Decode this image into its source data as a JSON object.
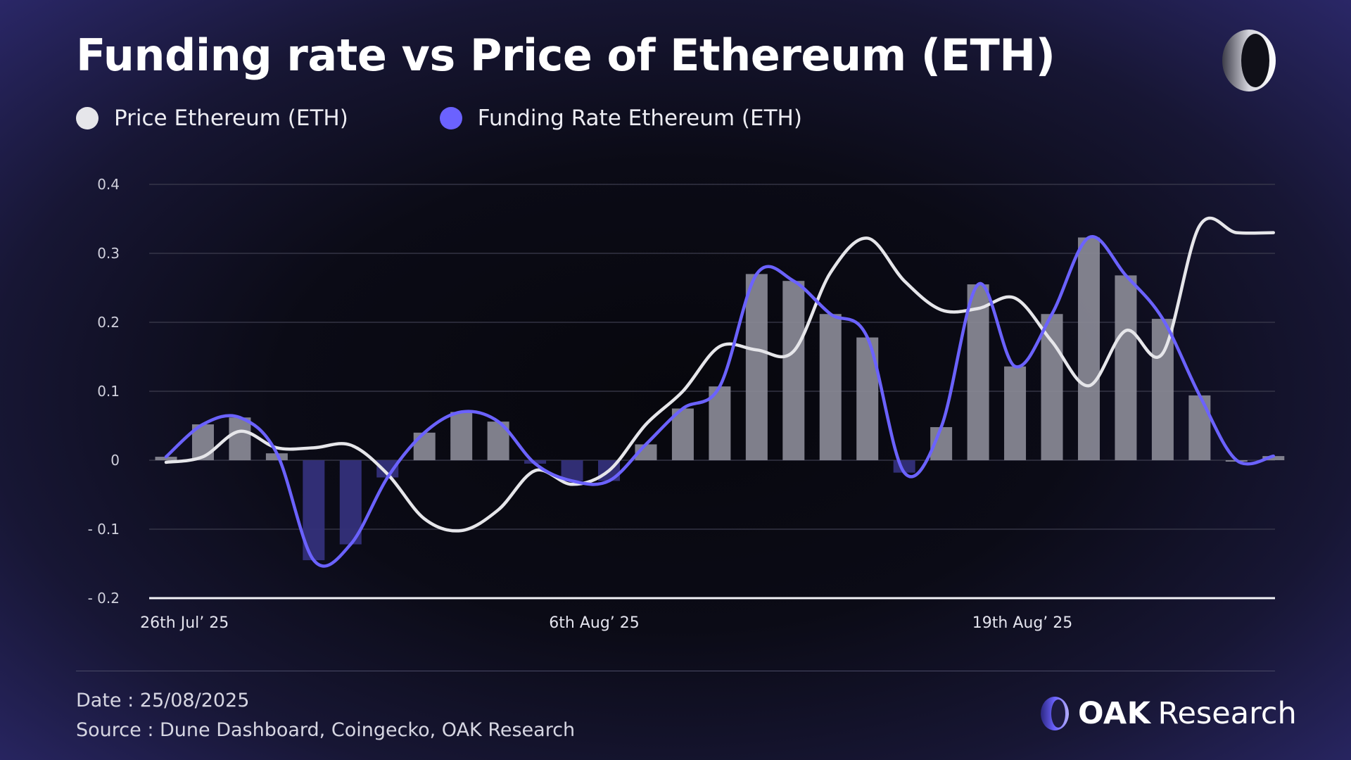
{
  "header": {
    "title": "Funding rate vs Price of Ethereum (ETH)"
  },
  "legend": {
    "items": [
      {
        "label": "Price Ethereum (ETH)",
        "color": "#e6e6ea"
      },
      {
        "label": "Funding Rate Ethereum (ETH)",
        "color": "#6b62ff"
      }
    ]
  },
  "footer": {
    "date": "Date : 25/08/2025",
    "source": "Source : Dune Dashboard, Coingecko, OAK Research"
  },
  "brand": {
    "name_bold": "OAK",
    "name_light": "Research"
  },
  "colors": {
    "accent": "#6b62ff",
    "price_line": "#e6e6ea",
    "bar_positive": "#8a8a96",
    "bar_negative": "#34307a",
    "grid": "#3c3c4e"
  },
  "chart_data": {
    "type": "bar",
    "title": "Funding rate vs Price of Ethereum (ETH)",
    "ylim": [
      -0.2,
      0.4
    ],
    "yticks": [
      0.4,
      0.3,
      0.2,
      0.1,
      0,
      -0.1,
      -0.2
    ],
    "ytick_labels": [
      "0.4",
      "0.3",
      "0.2",
      "0.1",
      "0",
      "- 0.1",
      "- 0.2"
    ],
    "x_labels": [
      {
        "index": 0.5,
        "label": "26th Jul’ 25"
      },
      {
        "index": 11.6,
        "label": "6th Aug’ 25"
      },
      {
        "index": 23.2,
        "label": "19th Aug’ 25"
      }
    ],
    "n_points": 31,
    "series": [
      {
        "name": "Funding Rate Ethereum (ETH)",
        "kind": "bars+line",
        "values": [
          0.005,
          0.052,
          0.062,
          0.01,
          -0.145,
          -0.122,
          -0.025,
          0.04,
          0.07,
          0.056,
          -0.005,
          -0.03,
          -0.03,
          0.023,
          0.075,
          0.107,
          0.27,
          0.26,
          0.212,
          0.178,
          -0.018,
          0.048,
          0.255,
          0.136,
          0.212,
          0.323,
          0.268,
          0.205,
          0.094,
          0.0,
          0.006
        ]
      },
      {
        "name": "Price Ethereum (ETH)",
        "kind": "line",
        "values": [
          -0.003,
          0.005,
          0.042,
          0.018,
          0.018,
          0.022,
          -0.02,
          -0.085,
          -0.102,
          -0.072,
          -0.015,
          -0.035,
          -0.015,
          0.052,
          0.1,
          0.165,
          0.16,
          0.158,
          0.272,
          0.322,
          0.26,
          0.218,
          0.22,
          0.235,
          0.172,
          0.108,
          0.188,
          0.155,
          0.34,
          0.33,
          0.33
        ]
      }
    ]
  }
}
